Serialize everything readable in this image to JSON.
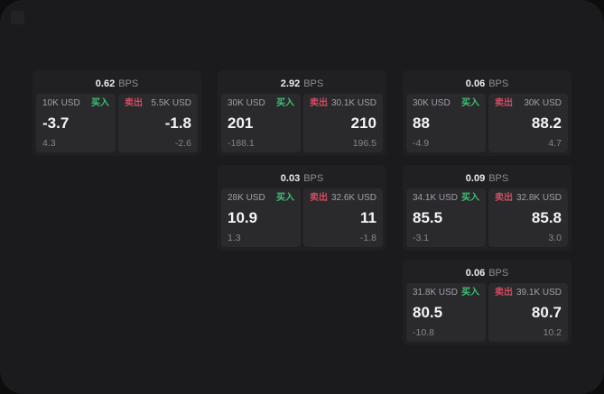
{
  "labels": {
    "buy": "买入",
    "sell": "卖出",
    "bps_unit": "BPS"
  },
  "colors": {
    "buy-color": "#3fc173",
    "sell-color": "#d14b60",
    "window-bg": "#1b1b1e",
    "card-bg": "#202023",
    "panel-bg": "#2a2a2d"
  },
  "cards": [
    {
      "row": 1,
      "col": 1,
      "bps": "0.62",
      "buy": {
        "amount": "10K USD",
        "value": "-3.7",
        "change": "4.3"
      },
      "sell": {
        "amount": "5.5K USD",
        "value": "-1.8",
        "change": "-2.6"
      }
    },
    {
      "row": 1,
      "col": 2,
      "bps": "2.92",
      "buy": {
        "amount": "30K USD",
        "value": "201",
        "change": "-188.1"
      },
      "sell": {
        "amount": "30.1K USD",
        "value": "210",
        "change": "196.5"
      }
    },
    {
      "row": 1,
      "col": 3,
      "bps": "0.06",
      "buy": {
        "amount": "30K USD",
        "value": "88",
        "change": "-4.9"
      },
      "sell": {
        "amount": "30K USD",
        "value": "88.2",
        "change": "4.7"
      }
    },
    {
      "row": 2,
      "col": 2,
      "bps": "0.03",
      "buy": {
        "amount": "28K USD",
        "value": "10.9",
        "change": "1.3"
      },
      "sell": {
        "amount": "32.6K USD",
        "value": "11",
        "change": "-1.8"
      }
    },
    {
      "row": 2,
      "col": 3,
      "bps": "0.09",
      "buy": {
        "amount": "34.1K USD",
        "value": "85.5",
        "change": "-3.1"
      },
      "sell": {
        "amount": "32.8K USD",
        "value": "85.8",
        "change": "3.0"
      }
    },
    {
      "row": 3,
      "col": 3,
      "bps": "0.06",
      "buy": {
        "amount": "31.8K USD",
        "value": "80.5",
        "change": "-10.8"
      },
      "sell": {
        "amount": "39.1K USD",
        "value": "80.7",
        "change": "10.2"
      }
    }
  ]
}
